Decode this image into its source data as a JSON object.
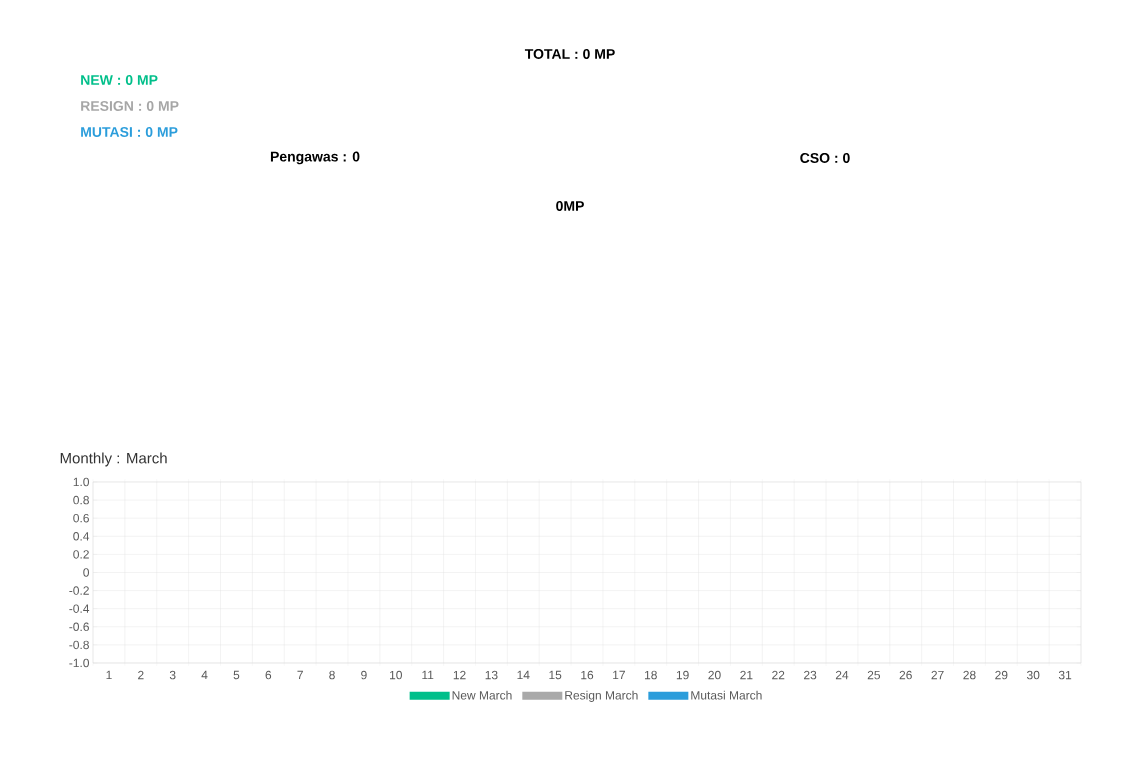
{
  "chart_data": [
    {
      "type": "other",
      "annotations": [
        "TOTAL : 0 MP",
        "NEW : 0 MP",
        "RESIGN : 0 MP",
        "MUTASI : 0 MP",
        "Pengawas : 0",
        "CSO : 0",
        "0MP"
      ],
      "colors": [
        "#000000",
        "#00bf8a",
        "#a6a6a6",
        "#2b9ddb",
        "#000000",
        "#000000",
        "#000000"
      ]
    },
    {
      "type": "bar",
      "title": "Monthly : March",
      "categories": [
        "1",
        "2",
        "3",
        "4",
        "5",
        "6",
        "7",
        "8",
        "9",
        "10",
        "11",
        "12",
        "13",
        "14",
        "15",
        "16",
        "17",
        "18",
        "19",
        "20",
        "21",
        "22",
        "23",
        "24",
        "25",
        "26",
        "27",
        "28",
        "29",
        "30",
        "31"
      ],
      "series": [
        {
          "name": "New March",
          "color": "#00bf8a",
          "values": [
            0,
            0,
            0,
            0,
            0,
            0,
            0,
            0,
            0,
            0,
            0,
            0,
            0,
            0,
            0,
            0,
            0,
            0,
            0,
            0,
            0,
            0,
            0,
            0,
            0,
            0,
            0,
            0,
            0,
            0,
            0
          ]
        },
        {
          "name": "Resign March",
          "color": "#a9a9a9",
          "values": [
            0,
            0,
            0,
            0,
            0,
            0,
            0,
            0,
            0,
            0,
            0,
            0,
            0,
            0,
            0,
            0,
            0,
            0,
            0,
            0,
            0,
            0,
            0,
            0,
            0,
            0,
            0,
            0,
            0,
            0,
            0
          ]
        },
        {
          "name": "Mutasi March",
          "color": "#2b9ddb",
          "values": [
            0,
            0,
            0,
            0,
            0,
            0,
            0,
            0,
            0,
            0,
            0,
            0,
            0,
            0,
            0,
            0,
            0,
            0,
            0,
            0,
            0,
            0,
            0,
            0,
            0,
            0,
            0,
            0,
            0,
            0,
            0
          ]
        }
      ],
      "ylim": [
        -1,
        1
      ],
      "yticks": [
        {
          "value": -1,
          "label": "-1.0"
        },
        {
          "value": -0.8,
          "label": "-0.8"
        },
        {
          "value": -0.6,
          "label": "-0.6"
        },
        {
          "value": -0.4,
          "label": "-0.4"
        },
        {
          "value": -0.2,
          "label": "-0.2"
        },
        0,
        {
          "value": 0.2,
          "label": "0.2"
        },
        {
          "value": 0.4,
          "label": "0.4"
        },
        {
          "value": 0.6,
          "label": "0.6"
        },
        {
          "value": 0.8,
          "label": "0.8"
        },
        {
          "value": 1,
          "label": "1.0"
        }
      ],
      "grid": true,
      "legend": "bottom"
    }
  ]
}
